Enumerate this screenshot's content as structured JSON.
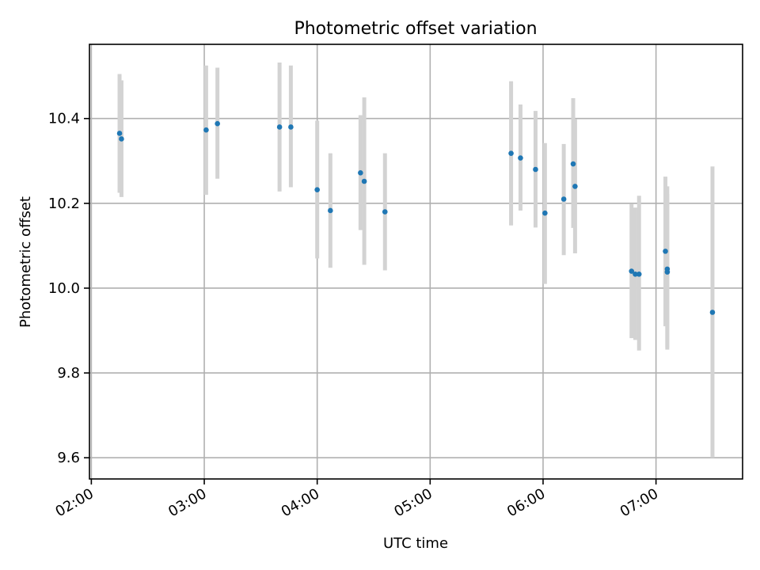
{
  "chart_data": {
    "type": "scatter",
    "title": "Photometric offset variation",
    "xlabel": "UTC time",
    "ylabel": "Photometric offset",
    "xlim": [
      "01:59",
      "07:46"
    ],
    "ylim": [
      9.55,
      10.575
    ],
    "x_ticks": [
      "02:00",
      "03:00",
      "04:00",
      "05:00",
      "06:00",
      "07:00"
    ],
    "y_ticks": [
      9.6,
      9.8,
      10.0,
      10.2,
      10.4
    ],
    "y_tick_labels": [
      "9.6",
      "9.8",
      "10.0",
      "10.2",
      "10.4"
    ],
    "grid": true,
    "marker_color": "#1f77b4",
    "errorbar_color": "#d3d3d3",
    "series": [
      {
        "points": [
          {
            "x": "02:15",
            "y": 10.365,
            "yerr_low": 10.225,
            "yerr_high": 10.505
          },
          {
            "x": "02:16",
            "y": 10.352,
            "yerr_low": 10.215,
            "yerr_high": 10.49
          },
          {
            "x": "03:01",
            "y": 10.373,
            "yerr_low": 10.22,
            "yerr_high": 10.525
          },
          {
            "x": "03:07",
            "y": 10.388,
            "yerr_low": 10.258,
            "yerr_high": 10.52
          },
          {
            "x": "03:40",
            "y": 10.38,
            "yerr_low": 10.228,
            "yerr_high": 10.532
          },
          {
            "x": "03:46",
            "y": 10.38,
            "yerr_low": 10.238,
            "yerr_high": 10.525
          },
          {
            "x": "04:00",
            "y": 10.232,
            "yerr_low": 10.07,
            "yerr_high": 10.395
          },
          {
            "x": "04:07",
            "y": 10.183,
            "yerr_low": 10.048,
            "yerr_high": 10.318
          },
          {
            "x": "04:23",
            "y": 10.272,
            "yerr_low": 10.137,
            "yerr_high": 10.408
          },
          {
            "x": "04:25",
            "y": 10.252,
            "yerr_low": 10.055,
            "yerr_high": 10.45
          },
          {
            "x": "04:36",
            "y": 10.18,
            "yerr_low": 10.042,
            "yerr_high": 10.318
          },
          {
            "x": "05:43",
            "y": 10.318,
            "yerr_low": 10.148,
            "yerr_high": 10.488
          },
          {
            "x": "05:48",
            "y": 10.307,
            "yerr_low": 10.183,
            "yerr_high": 10.433
          },
          {
            "x": "05:56",
            "y": 10.28,
            "yerr_low": 10.143,
            "yerr_high": 10.418
          },
          {
            "x": "06:01",
            "y": 10.177,
            "yerr_low": 10.01,
            "yerr_high": 10.342
          },
          {
            "x": "06:11",
            "y": 10.21,
            "yerr_low": 10.078,
            "yerr_high": 10.34
          },
          {
            "x": "06:16",
            "y": 10.293,
            "yerr_low": 10.142,
            "yerr_high": 10.448
          },
          {
            "x": "06:17",
            "y": 10.24,
            "yerr_low": 10.082,
            "yerr_high": 10.398
          },
          {
            "x": "06:47",
            "y": 10.04,
            "yerr_low": 9.882,
            "yerr_high": 10.198
          },
          {
            "x": "06:49",
            "y": 10.033,
            "yerr_low": 9.878,
            "yerr_high": 10.19
          },
          {
            "x": "06:51",
            "y": 10.033,
            "yerr_low": 9.853,
            "yerr_high": 10.218
          },
          {
            "x": "07:05",
            "y": 10.087,
            "yerr_low": 9.91,
            "yerr_high": 10.263
          },
          {
            "x": "07:06",
            "y": 10.045,
            "yerr_low": 9.855,
            "yerr_high": 10.24
          },
          {
            "x": "07:06",
            "y": 10.038,
            "yerr_low": 9.86,
            "yerr_high": 10.222
          },
          {
            "x": "07:30",
            "y": 9.943,
            "yerr_low": 9.6,
            "yerr_high": 10.287
          }
        ]
      }
    ]
  }
}
